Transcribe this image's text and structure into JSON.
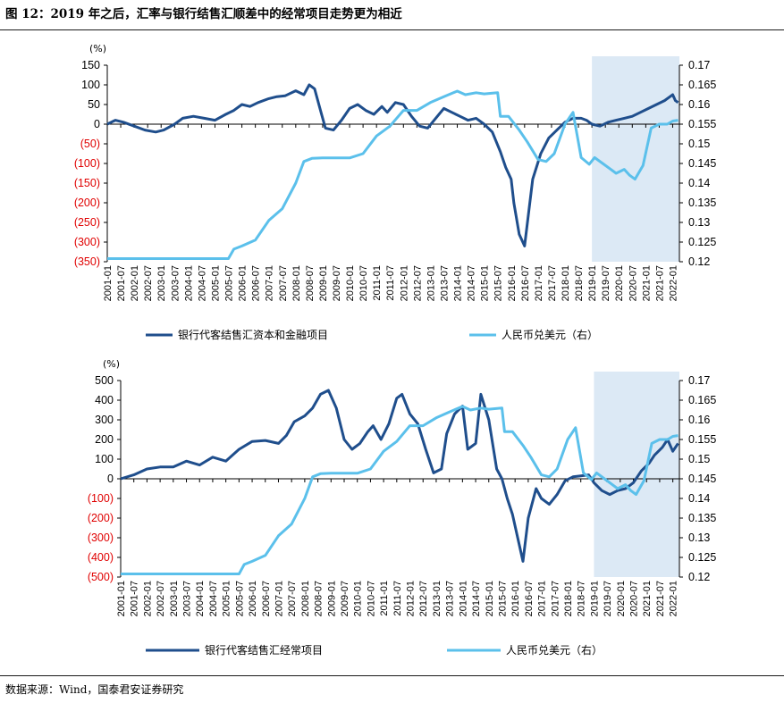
{
  "figure": {
    "title": "图 12：2019 年之后，汇率与银行结售汇顺差中的经常项目走势更为相近",
    "source": "数据来源：Wind，国泰君安证券研究"
  },
  "colors": {
    "dark_series": "#1f4e8c",
    "light_series": "#5bc0eb",
    "negative_label": "#e00000",
    "highlight": "#dce9f5"
  },
  "chart_data": [
    {
      "type": "line",
      "unit_label": "(%)",
      "left_axis": {
        "ylim": [
          -350,
          150
        ],
        "ticks": [
          150,
          100,
          50,
          0,
          -50,
          -100,
          -150,
          -200,
          -250,
          -300,
          -350
        ],
        "tick_labels": [
          "150",
          "100",
          "50",
          "0",
          "(50)",
          "(100)",
          "(150)",
          "(200)",
          "(250)",
          "(300)",
          "(350)"
        ]
      },
      "right_axis": {
        "ylim": [
          0.12,
          0.17
        ],
        "ticks": [
          0.17,
          0.165,
          0.16,
          0.155,
          0.15,
          0.145,
          0.14,
          0.135,
          0.13,
          0.125,
          0.12
        ],
        "tick_labels": [
          "0.17",
          "0.165",
          "0.16",
          "0.155",
          "0.15",
          "0.145",
          "0.14",
          "0.135",
          "0.13",
          "0.125",
          "0.12"
        ]
      },
      "x_categories": [
        "2001-01",
        "2001-07",
        "2002-01",
        "2002-07",
        "2003-01",
        "2003-07",
        "2004-01",
        "2004-07",
        "2005-01",
        "2005-07",
        "2006-01",
        "2006-07",
        "2007-01",
        "2007-07",
        "2008-01",
        "2008-07",
        "2009-01",
        "2009-07",
        "2010-01",
        "2010-07",
        "2011-01",
        "2011-07",
        "2012-01",
        "2012-07",
        "2013-01",
        "2013-07",
        "2014-01",
        "2014-07",
        "2015-01",
        "2015-07",
        "2016-01",
        "2016-07",
        "2017-01",
        "2017-07",
        "2018-01",
        "2018-07",
        "2019-01",
        "2019-07",
        "2020-01",
        "2020-07",
        "2021-01",
        "2021-07",
        "2022-01"
      ],
      "highlight": {
        "from": "2019-01",
        "to": "2022-04"
      },
      "series": [
        {
          "name": "银行代客结售汇资本和金融项目",
          "axis": "left",
          "x": [
            2001.0,
            2001.3,
            2001.6,
            2002.0,
            2002.4,
            2002.8,
            2003.1,
            2003.5,
            2003.8,
            2004.2,
            2004.6,
            2005.0,
            2005.4,
            2005.7,
            2006.0,
            2006.3,
            2006.6,
            2007.0,
            2007.3,
            2007.6,
            2008.0,
            2008.3,
            2008.5,
            2008.7,
            2008.9,
            2009.1,
            2009.4,
            2009.7,
            2010.0,
            2010.3,
            2010.6,
            2010.9,
            2011.2,
            2011.4,
            2011.7,
            2012.0,
            2012.3,
            2012.6,
            2012.9,
            2013.2,
            2013.5,
            2013.8,
            2014.1,
            2014.4,
            2014.7,
            2015.0,
            2015.3,
            2015.6,
            2015.8,
            2016.0,
            2016.1,
            2016.3,
            2016.5,
            2016.8,
            2017.1,
            2017.4,
            2017.7,
            2018.0,
            2018.3,
            2018.6,
            2018.8,
            2019.0,
            2019.3,
            2019.6,
            2019.9,
            2020.2,
            2020.5,
            2020.8,
            2021.1,
            2021.4,
            2021.7,
            2021.9,
            2022.0,
            2022.1,
            2022.2
          ],
          "y": [
            0,
            10,
            5,
            -5,
            -15,
            -20,
            -15,
            0,
            15,
            20,
            15,
            10,
            25,
            35,
            50,
            45,
            55,
            65,
            70,
            72,
            85,
            75,
            100,
            90,
            40,
            -10,
            -15,
            10,
            40,
            50,
            35,
            25,
            45,
            30,
            55,
            50,
            20,
            -5,
            -10,
            15,
            40,
            30,
            20,
            10,
            15,
            0,
            -20,
            -70,
            -110,
            -140,
            -200,
            -280,
            -310,
            -140,
            -75,
            -35,
            -15,
            5,
            15,
            15,
            10,
            0,
            -5,
            5,
            10,
            15,
            20,
            30,
            40,
            50,
            60,
            70,
            75,
            60,
            55
          ]
        },
        {
          "name": "人民币兑美元（右）",
          "axis": "right",
          "x": [
            2001.0,
            2002.0,
            2003.0,
            2004.0,
            2005.0,
            2005.5,
            2005.7,
            2006.0,
            2006.5,
            2007.0,
            2007.5,
            2008.0,
            2008.3,
            2008.6,
            2009.0,
            2009.5,
            2010.0,
            2010.5,
            2011.0,
            2011.5,
            2012.0,
            2012.5,
            2013.0,
            2013.5,
            2014.0,
            2014.3,
            2014.7,
            2015.0,
            2015.5,
            2015.6,
            2015.9,
            2016.3,
            2016.6,
            2017.0,
            2017.3,
            2017.6,
            2018.0,
            2018.3,
            2018.6,
            2018.9,
            2019.1,
            2019.4,
            2019.7,
            2019.9,
            2020.2,
            2020.4,
            2020.6,
            2020.9,
            2021.2,
            2021.5,
            2021.8,
            2022.0,
            2022.2
          ],
          "y": [
            0.1208,
            0.1208,
            0.1208,
            0.1208,
            0.1208,
            0.1208,
            0.1232,
            0.124,
            0.1255,
            0.1305,
            0.1335,
            0.14,
            0.1455,
            0.1463,
            0.1464,
            0.1464,
            0.1464,
            0.1475,
            0.152,
            0.1545,
            0.1585,
            0.1585,
            0.1605,
            0.162,
            0.1634,
            0.1625,
            0.163,
            0.1627,
            0.163,
            0.157,
            0.157,
            0.1535,
            0.1505,
            0.146,
            0.1455,
            0.1475,
            0.155,
            0.158,
            0.1465,
            0.1448,
            0.1465,
            0.145,
            0.1435,
            0.1425,
            0.1435,
            0.142,
            0.141,
            0.1445,
            0.154,
            0.155,
            0.155,
            0.1558,
            0.156
          ]
        }
      ],
      "legend": [
        "银行代客结售汇资本和金融项目",
        "人民币兑美元（右）"
      ]
    },
    {
      "type": "line",
      "unit_label": "(%)",
      "left_axis": {
        "ylim": [
          -500,
          500
        ],
        "ticks": [
          500,
          400,
          300,
          200,
          100,
          0,
          -100,
          -200,
          -300,
          -400,
          -500
        ],
        "tick_labels": [
          "500",
          "400",
          "300",
          "200",
          "100",
          "0",
          "(100)",
          "(200)",
          "(300)",
          "(400)",
          "(500)"
        ]
      },
      "right_axis": {
        "ylim": [
          0.12,
          0.17
        ],
        "ticks": [
          0.17,
          0.165,
          0.16,
          0.155,
          0.15,
          0.145,
          0.14,
          0.135,
          0.13,
          0.125,
          0.12
        ],
        "tick_labels": [
          "0.17",
          "0.165",
          "0.16",
          "0.155",
          "0.15",
          "0.145",
          "0.14",
          "0.135",
          "0.13",
          "0.125",
          "0.12"
        ]
      },
      "x_categories": [
        "2001-01",
        "2001-07",
        "2002-01",
        "2002-07",
        "2003-01",
        "2003-07",
        "2004-01",
        "2004-07",
        "2005-01",
        "2005-07",
        "2006-01",
        "2006-07",
        "2007-01",
        "2007-07",
        "2008-01",
        "2008-07",
        "2009-01",
        "2009-07",
        "2010-01",
        "2010-07",
        "2011-01",
        "2011-07",
        "2012-01",
        "2012-07",
        "2013-01",
        "2013-07",
        "2014-01",
        "2014-07",
        "2015-01",
        "2015-07",
        "2016-01",
        "2016-07",
        "2017-01",
        "2017-07",
        "2018-01",
        "2018-07",
        "2019-01",
        "2019-07",
        "2020-01",
        "2020-07",
        "2021-01",
        "2021-07",
        "2022-01"
      ],
      "highlight": {
        "from": "2019-01",
        "to": "2022-04"
      },
      "series": [
        {
          "name": "银行代客结售汇经常项目",
          "axis": "left",
          "x": [
            2001.0,
            2001.5,
            2002.0,
            2002.5,
            2003.0,
            2003.5,
            2004.0,
            2004.5,
            2005.0,
            2005.5,
            2006.0,
            2006.5,
            2007.0,
            2007.3,
            2007.6,
            2008.0,
            2008.3,
            2008.6,
            2008.9,
            2009.2,
            2009.5,
            2009.8,
            2010.1,
            2010.4,
            2010.6,
            2010.9,
            2011.2,
            2011.5,
            2011.7,
            2012.0,
            2012.3,
            2012.6,
            2012.9,
            2013.2,
            2013.4,
            2013.7,
            2014.0,
            2014.2,
            2014.5,
            2014.7,
            2015.0,
            2015.3,
            2015.5,
            2015.7,
            2015.9,
            2016.1,
            2016.3,
            2016.5,
            2016.8,
            2017.0,
            2017.3,
            2017.6,
            2017.9,
            2018.2,
            2018.5,
            2018.8,
            2019.0,
            2019.3,
            2019.6,
            2019.9,
            2020.2,
            2020.5,
            2020.8,
            2021.1,
            2021.3,
            2021.6,
            2021.8,
            2022.0,
            2022.2
          ],
          "y": [
            0,
            20,
            50,
            60,
            60,
            90,
            70,
            110,
            90,
            150,
            190,
            195,
            180,
            220,
            290,
            320,
            360,
            430,
            450,
            360,
            200,
            150,
            180,
            240,
            270,
            200,
            280,
            410,
            430,
            330,
            280,
            150,
            30,
            50,
            230,
            330,
            370,
            150,
            180,
            430,
            300,
            50,
            0,
            -100,
            -180,
            -300,
            -420,
            -200,
            -50,
            -100,
            -130,
            -80,
            -10,
            10,
            15,
            20,
            -20,
            -60,
            -80,
            -60,
            -50,
            -20,
            40,
            80,
            120,
            160,
            200,
            140,
            180
          ]
        },
        {
          "name": "人民币兑美元（右）",
          "axis": "right",
          "x": [
            2001.0,
            2002.0,
            2003.0,
            2004.0,
            2005.0,
            2005.5,
            2005.7,
            2006.0,
            2006.5,
            2007.0,
            2007.5,
            2008.0,
            2008.3,
            2008.6,
            2009.0,
            2009.5,
            2010.0,
            2010.5,
            2011.0,
            2011.5,
            2012.0,
            2012.5,
            2013.0,
            2013.5,
            2014.0,
            2014.3,
            2014.7,
            2015.0,
            2015.5,
            2015.6,
            2015.9,
            2016.3,
            2016.6,
            2017.0,
            2017.3,
            2017.6,
            2018.0,
            2018.3,
            2018.6,
            2018.9,
            2019.1,
            2019.4,
            2019.7,
            2019.9,
            2020.2,
            2020.4,
            2020.6,
            2020.9,
            2021.2,
            2021.5,
            2021.8,
            2022.0,
            2022.2
          ],
          "y": [
            0.1208,
            0.1208,
            0.1208,
            0.1208,
            0.1208,
            0.1208,
            0.1232,
            0.124,
            0.1255,
            0.1305,
            0.1335,
            0.14,
            0.1455,
            0.1463,
            0.1464,
            0.1464,
            0.1464,
            0.1475,
            0.152,
            0.1545,
            0.1585,
            0.1585,
            0.1605,
            0.162,
            0.1634,
            0.1625,
            0.163,
            0.1627,
            0.163,
            0.157,
            0.157,
            0.1535,
            0.1505,
            0.146,
            0.1455,
            0.1475,
            0.155,
            0.158,
            0.1465,
            0.1448,
            0.1465,
            0.145,
            0.1435,
            0.1425,
            0.1435,
            0.142,
            0.141,
            0.1445,
            0.154,
            0.155,
            0.155,
            0.1558,
            0.156
          ]
        }
      ],
      "legend": [
        "银行代客结售汇经常项目",
        "人民币兑美元（右）"
      ]
    }
  ]
}
